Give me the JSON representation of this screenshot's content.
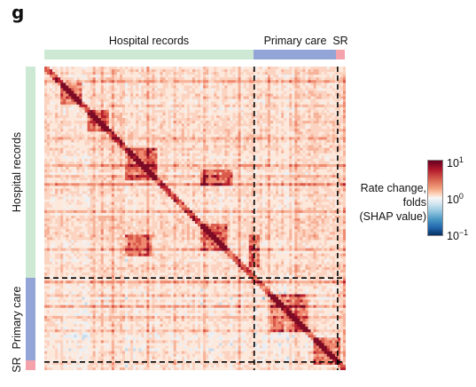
{
  "panel_label": "g",
  "colors": {
    "hospital": "#cde9d3",
    "primary": "#93a5d6",
    "sr": "#f4a3ac",
    "high": "#67001f",
    "mid": "#f0f0f0",
    "low": "#053061"
  },
  "chart_data": {
    "type": "heatmap",
    "title": "",
    "groups": [
      {
        "name": "Hospital records",
        "fraction": 0.7
      },
      {
        "name": "Primary care",
        "fraction": 0.275
      },
      {
        "name": "SR",
        "fraction": 0.025
      }
    ],
    "colorbar": {
      "title": [
        "Rate change,",
        "folds",
        "(SHAP value)"
      ],
      "scale": "log",
      "min": 0.1,
      "max": 10,
      "ticks": [
        {
          "base": "10",
          "exp": "1"
        },
        {
          "base": "10",
          "exp": "0"
        },
        {
          "base": "10",
          "exp": "−1"
        }
      ]
    },
    "grid": false
  }
}
